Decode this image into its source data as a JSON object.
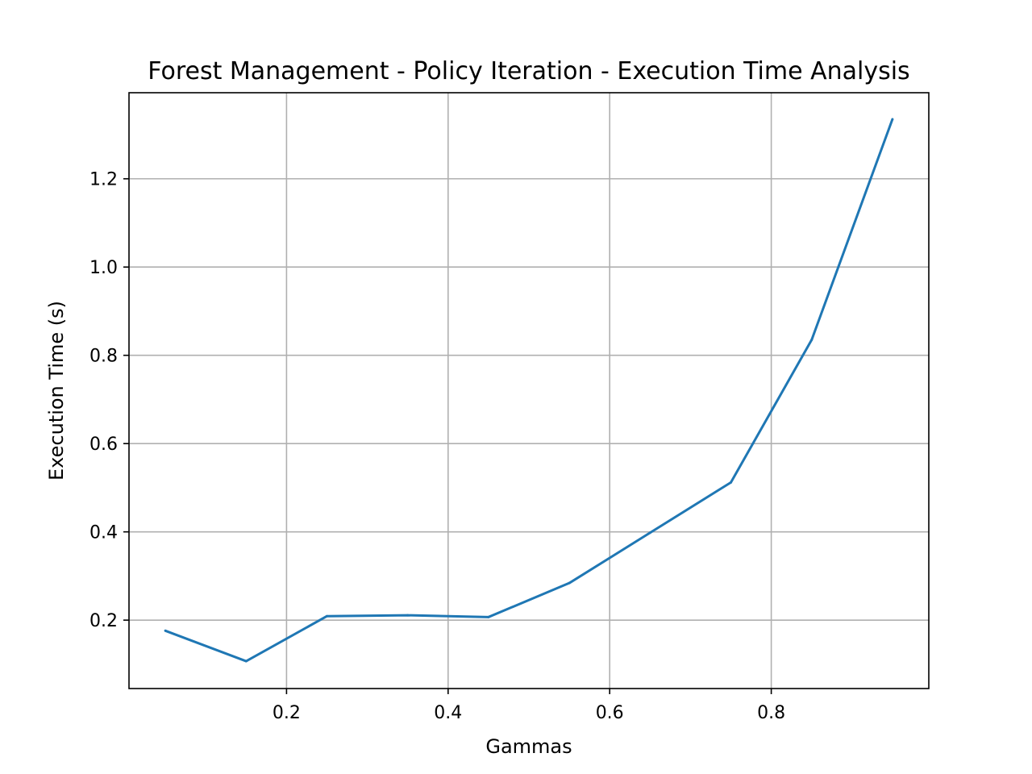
{
  "chart_data": {
    "type": "line",
    "title": "Forest Management - Policy Iteration - Execution Time Analysis",
    "xlabel": "Gammas",
    "ylabel": "Execution Time (s)",
    "xlim": [
      0.005,
      0.995
    ],
    "ylim": [
      0.045,
      1.395
    ],
    "xticks": [
      0.2,
      0.4,
      0.6,
      0.8
    ],
    "xtick_labels": [
      "0.2",
      "0.4",
      "0.6",
      "0.8"
    ],
    "yticks": [
      0.2,
      0.4,
      0.6,
      0.8,
      1.0,
      1.2
    ],
    "ytick_labels": [
      "0.2",
      "0.4",
      "0.6",
      "0.8",
      "1.0",
      "1.2"
    ],
    "grid": true,
    "series": [
      {
        "color": "#1f77b4",
        "x": [
          0.05,
          0.15,
          0.25,
          0.35,
          0.45,
          0.55,
          0.65,
          0.75,
          0.85,
          0.95
        ],
        "y": [
          0.176,
          0.107,
          0.209,
          0.211,
          0.207,
          0.284,
          0.398,
          0.512,
          0.835,
          1.335
        ]
      }
    ]
  }
}
